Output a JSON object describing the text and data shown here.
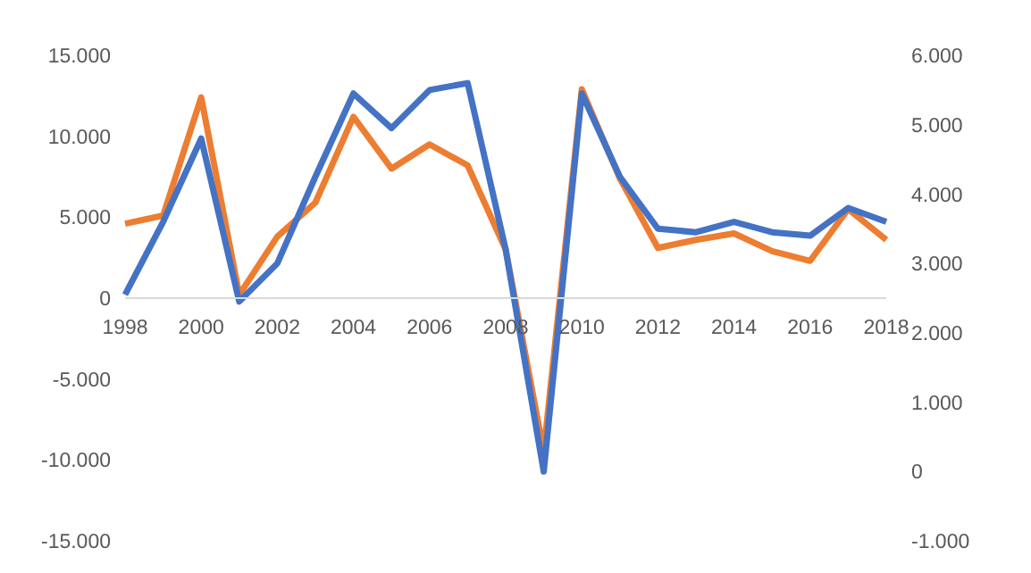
{
  "chart_data": {
    "type": "line",
    "categories": [
      "1998",
      null,
      "2000",
      null,
      "2002",
      null,
      "2004",
      null,
      "2006",
      null,
      "2008",
      null,
      "2010",
      null,
      "2012",
      null,
      "2014",
      null,
      "2016",
      null,
      "2018"
    ],
    "series": [
      {
        "color": "#ed7d31",
        "values": [
          4600,
          5100,
          12400,
          200,
          3800,
          5900,
          11200,
          8000,
          9500,
          8200,
          3000,
          -9500,
          12900,
          7400,
          3100,
          3600,
          4000,
          2900,
          2300,
          5500,
          3600
        ]
      },
      {
        "color": "#4472c4",
        "axis": "y2",
        "values": [
          2550,
          3600,
          4800,
          2450,
          3000,
          4250,
          5450,
          4950,
          5500,
          5600,
          3200,
          0,
          5450,
          4250,
          3500,
          3450,
          3600,
          3450,
          3400,
          3800,
          3600
        ]
      }
    ],
    "ylim": [
      -15000,
      15000
    ],
    "yticks": [
      {
        "value": -15000,
        "label": "-15.000"
      },
      {
        "value": -10000,
        "label": "-10.000"
      },
      {
        "value": -5000,
        "label": "-5.000"
      },
      {
        "value": 0,
        "label": "0"
      },
      {
        "value": 5000,
        "label": "5.000"
      },
      {
        "value": 10000,
        "label": "10.000"
      },
      {
        "value": 15000,
        "label": "15.000"
      }
    ],
    "y2lim": [
      -1000,
      6000
    ],
    "y2ticks": [
      {
        "value": -1000,
        "label": "-1.000"
      },
      {
        "value": 0,
        "label": "0"
      },
      {
        "value": 1000,
        "label": "1.000"
      },
      {
        "value": 2000,
        "label": "2.000"
      },
      {
        "value": 3000,
        "label": "3.000"
      },
      {
        "value": 4000,
        "label": "4.000"
      },
      {
        "value": 5000,
        "label": "5.000"
      },
      {
        "value": 6000,
        "label": "6.000"
      }
    ],
    "grid": false,
    "legend": false,
    "marker": "none",
    "line_style": "solid"
  }
}
